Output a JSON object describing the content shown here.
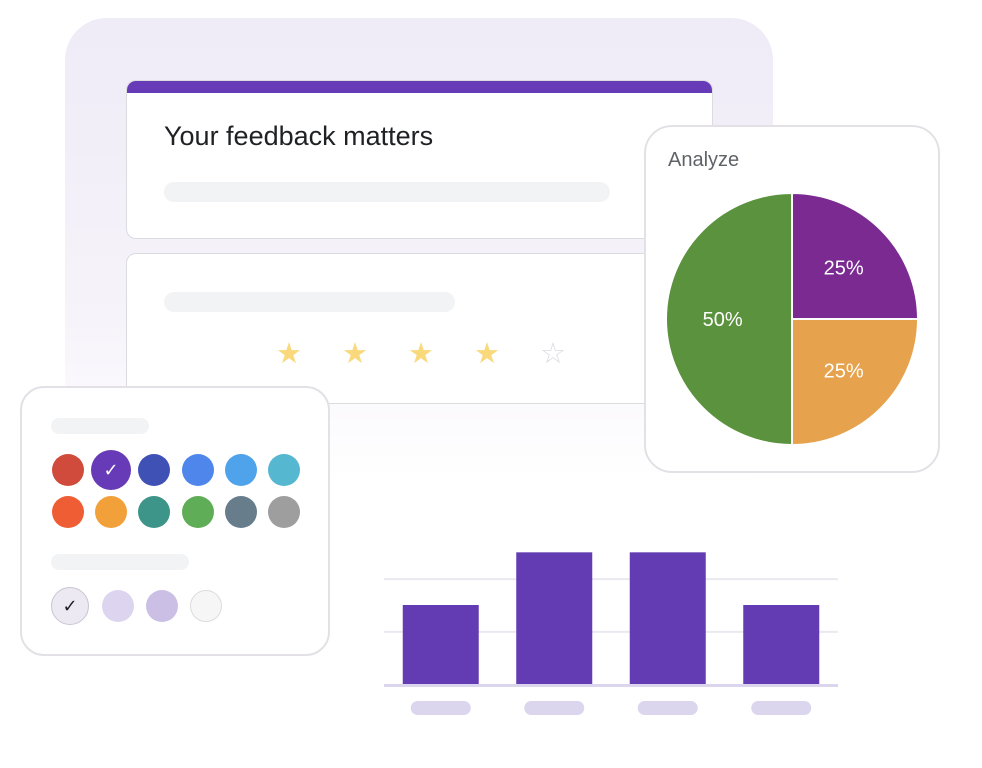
{
  "form": {
    "title": "Your feedback matters",
    "accent_color": "#673ab7",
    "rating": {
      "filled": 4,
      "max": 5,
      "filled_icon": "star-filled-icon",
      "empty_icon": "star-outline-icon",
      "filled_color": "#f9d97b",
      "empty_color": "#dadce0"
    }
  },
  "analyze": {
    "title": "Analyze",
    "chart_data": {
      "type": "pie",
      "slices": [
        {
          "label": "25%",
          "value": 25,
          "color": "#7b2a91"
        },
        {
          "label": "25%",
          "value": 25,
          "color": "#e6a24c"
        },
        {
          "label": "50%",
          "value": 50,
          "color": "#5b923e"
        }
      ]
    }
  },
  "palette": {
    "colors": [
      "#d04b3c",
      "#673ab7",
      "#3f51b5",
      "#4f86ec",
      "#4ea3ea",
      "#55b7d0",
      "#ef5d35",
      "#f2a03a",
      "#3d9488",
      "#5fad56",
      "#677d8c",
      "#9e9e9e"
    ],
    "selected_index": 1,
    "check_icon": "check-icon",
    "shades": [
      "#ece9f3",
      "#ddd4ef",
      "#cbbfe6",
      "#f6f6f6"
    ],
    "selected_shade_index": 0
  },
  "bar_chart": {
    "chart_data": {
      "type": "bar",
      "values": [
        3,
        5,
        5,
        3
      ],
      "ylim": [
        0,
        6
      ],
      "bar_color": "#633bb2",
      "grid": true
    }
  }
}
